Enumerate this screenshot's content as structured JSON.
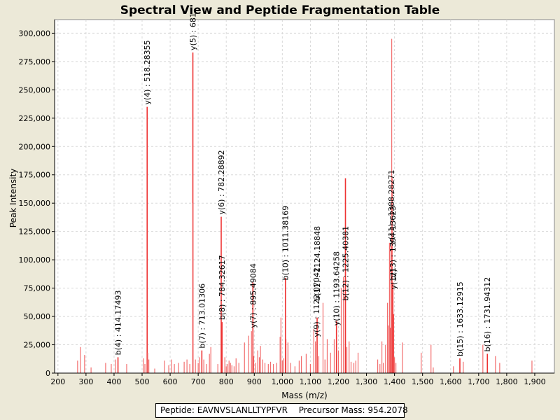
{
  "chart_data": {
    "type": "bar",
    "title": "Spectral View and Peptide Fragmentation Table",
    "xlabel": "Mass (m/z)",
    "ylabel": "Peak Intensity",
    "xlim": [
      188,
      1970
    ],
    "ylim": [
      0,
      312000
    ],
    "xticks": [
      200,
      300,
      400,
      500,
      600,
      700,
      800,
      900,
      1000,
      1100,
      1200,
      1300,
      1400,
      1500,
      1600,
      1700,
      1800,
      1900
    ],
    "xtick_labels": [
      "200",
      "300",
      "400",
      "500",
      "600",
      "700",
      "800",
      "900",
      "1,000",
      "1,100",
      "1,200",
      "1,300",
      "1,400",
      "1,500",
      "1,600",
      "1,700",
      "1,800",
      "1,900"
    ],
    "yticks": [
      0,
      25000,
      50000,
      75000,
      100000,
      125000,
      150000,
      175000,
      200000,
      225000,
      250000,
      275000,
      300000
    ],
    "ytick_labels": [
      "0",
      "25,000",
      "50,000",
      "75,000",
      "100,000",
      "125,000",
      "150,000",
      "175,000",
      "200,000",
      "225,000",
      "250,000",
      "275,000",
      "300,000"
    ],
    "peaks": [
      [
        270,
        11000
      ],
      [
        280,
        23000
      ],
      [
        295,
        16000
      ],
      [
        318,
        5000
      ],
      [
        370,
        9000
      ],
      [
        390,
        8000
      ],
      [
        405,
        12000
      ],
      [
        414,
        14000
      ],
      [
        445,
        8000
      ],
      [
        505,
        13000
      ],
      [
        510,
        8000
      ],
      [
        518,
        235000
      ],
      [
        520,
        18000
      ],
      [
        524,
        12000
      ],
      [
        545,
        4000
      ],
      [
        580,
        11000
      ],
      [
        595,
        7000
      ],
      [
        605,
        12000
      ],
      [
        615,
        8000
      ],
      [
        630,
        9000
      ],
      [
        650,
        10000
      ],
      [
        660,
        12000
      ],
      [
        670,
        8000
      ],
      [
        681,
        283000
      ],
      [
        682,
        150000
      ],
      [
        690,
        12000
      ],
      [
        700,
        9000
      ],
      [
        705,
        14000
      ],
      [
        713,
        20000
      ],
      [
        720,
        12000
      ],
      [
        730,
        8000
      ],
      [
        740,
        17000
      ],
      [
        745,
        23000
      ],
      [
        770,
        8000
      ],
      [
        782,
        138000
      ],
      [
        785,
        45000
      ],
      [
        795,
        14000
      ],
      [
        800,
        6000
      ],
      [
        805,
        8000
      ],
      [
        810,
        11000
      ],
      [
        815,
        9000
      ],
      [
        820,
        7000
      ],
      [
        828,
        6000
      ],
      [
        835,
        13000
      ],
      [
        845,
        9000
      ],
      [
        865,
        27000
      ],
      [
        880,
        33000
      ],
      [
        890,
        37000
      ],
      [
        895,
        80000
      ],
      [
        898,
        15000
      ],
      [
        905,
        9000
      ],
      [
        912,
        20000
      ],
      [
        918,
        14000
      ],
      [
        922,
        24000
      ],
      [
        930,
        12000
      ],
      [
        938,
        9000
      ],
      [
        950,
        8000
      ],
      [
        958,
        10000
      ],
      [
        968,
        8000
      ],
      [
        980,
        9000
      ],
      [
        992,
        32000
      ],
      [
        995,
        49000
      ],
      [
        1000,
        11000
      ],
      [
        1005,
        13000
      ],
      [
        1011,
        84000
      ],
      [
        1013,
        30000
      ],
      [
        1020,
        27000
      ],
      [
        1030,
        9000
      ],
      [
        1045,
        6000
      ],
      [
        1060,
        11000
      ],
      [
        1068,
        15000
      ],
      [
        1085,
        17000
      ],
      [
        1100,
        8000
      ],
      [
        1112,
        39000
      ],
      [
        1118,
        28000
      ],
      [
        1124,
        49000
      ],
      [
        1130,
        15000
      ],
      [
        1145,
        62000
      ],
      [
        1152,
        12000
      ],
      [
        1160,
        30000
      ],
      [
        1172,
        18000
      ],
      [
        1185,
        30000
      ],
      [
        1193,
        46000
      ],
      [
        1200,
        20000
      ],
      [
        1210,
        75000
      ],
      [
        1218,
        85000
      ],
      [
        1225,
        172000
      ],
      [
        1230,
        23000
      ],
      [
        1238,
        28000
      ],
      [
        1245,
        10000
      ],
      [
        1255,
        9000
      ],
      [
        1262,
        11000
      ],
      [
        1270,
        18000
      ],
      [
        1340,
        12000
      ],
      [
        1348,
        8000
      ],
      [
        1355,
        28000
      ],
      [
        1360,
        9000
      ],
      [
        1368,
        25000
      ],
      [
        1375,
        62000
      ],
      [
        1378,
        42000
      ],
      [
        1382,
        115000
      ],
      [
        1385,
        40000
      ],
      [
        1388,
        112000
      ],
      [
        1390,
        295000
      ],
      [
        1392,
        172000
      ],
      [
        1394,
        80000
      ],
      [
        1396,
        52000
      ],
      [
        1400,
        14000
      ],
      [
        1405,
        9000
      ],
      [
        1428,
        27000
      ],
      [
        1495,
        18000
      ],
      [
        1530,
        25000
      ],
      [
        1538,
        5000
      ],
      [
        1610,
        6000
      ],
      [
        1633,
        13000
      ],
      [
        1645,
        10000
      ],
      [
        1715,
        25000
      ],
      [
        1731,
        17000
      ],
      [
        1760,
        15000
      ],
      [
        1775,
        9000
      ],
      [
        1890,
        11000
      ]
    ],
    "annotations": [
      {
        "label": "b(4) : 414.17493",
        "x": 414,
        "y": 14000
      },
      {
        "label": "y(4) : 518.28355",
        "x": 518,
        "y": 235000
      },
      {
        "label": "y(5) : 681",
        "x": 681,
        "y": 283000
      },
      {
        "label": "b(7) : 713.01306",
        "x": 713,
        "y": 20000
      },
      {
        "label": "y(6) : 782.28892",
        "x": 782,
        "y": 138000
      },
      {
        "label": "b(8) : 784.32617",
        "x": 785,
        "y": 45000
      },
      {
        "label": "y(7) : 895.49084",
        "x": 895,
        "y": 38000
      },
      {
        "label": "b(10) : 1011.38169",
        "x": 1011,
        "y": 80000
      },
      {
        "label": "y(9) : 1122.07042",
        "x": 1122,
        "y": 30000
      },
      {
        "label": "b(11) : 1124.18848",
        "x": 1124,
        "y": 62000
      },
      {
        "label": "y(10) : 1193.64258",
        "x": 1193,
        "y": 40000
      },
      {
        "label": "b(12) : 1225.40381",
        "x": 1225,
        "y": 62000
      },
      {
        "label": "y(11) : 1388.28271",
        "x": 1388,
        "y": 112000
      },
      {
        "label": "b(13) : 1394.13623",
        "x": 1394,
        "y": 80000
      },
      {
        "label": "y(12)",
        "x": 1396,
        "y": 72000
      },
      {
        "label": "b(15) : 1633.12915",
        "x": 1633,
        "y": 13000
      },
      {
        "label": "b(16) : 1731.94312",
        "x": 1731,
        "y": 17000
      }
    ]
  },
  "legend": {
    "peptide": "Peptide: EAVNVSLANLLTYPFVR",
    "precursor": "Precursor Mass: 954.2078"
  },
  "colors": {
    "peak": "#f26d6d",
    "annotated_peak": "#ee3333",
    "plot_background": "#ffffff",
    "page_background": "#ece9d8"
  }
}
